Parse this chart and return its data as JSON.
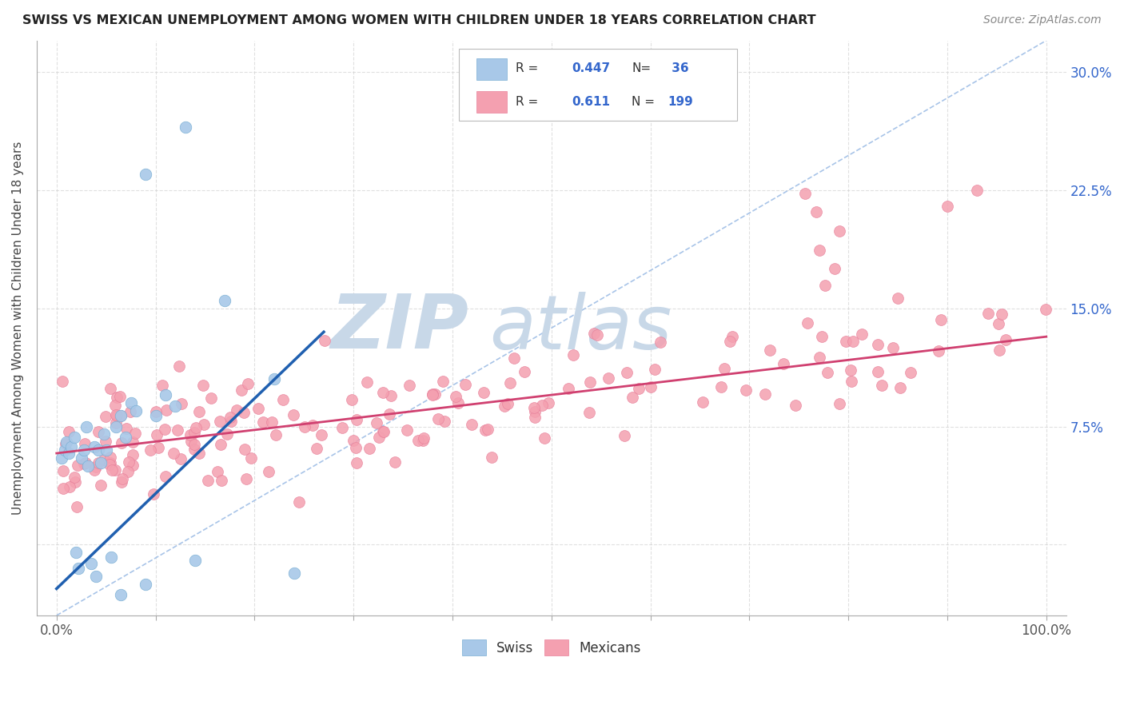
{
  "title": "SWISS VS MEXICAN UNEMPLOYMENT AMONG WOMEN WITH CHILDREN UNDER 18 YEARS CORRELATION CHART",
  "source": "Source: ZipAtlas.com",
  "ylabel": "Unemployment Among Women with Children Under 18 years",
  "xlim": [
    -0.02,
    1.02
  ],
  "ylim": [
    -0.045,
    0.32
  ],
  "xtick_positions": [
    0.0,
    0.1,
    0.2,
    0.3,
    0.4,
    0.5,
    0.6,
    0.7,
    0.8,
    0.9,
    1.0
  ],
  "ytick_positions": [
    0.0,
    0.075,
    0.15,
    0.225,
    0.3
  ],
  "ytick_labels": [
    "",
    "7.5%",
    "15.0%",
    "22.5%",
    "30.0%"
  ],
  "swiss_color": "#a8c8e8",
  "swiss_edge_color": "#7aafd4",
  "mexican_color": "#f4a0b0",
  "mexican_edge_color": "#e8809a",
  "swiss_line_color": "#2060b0",
  "mexican_line_color": "#d04070",
  "diagonal_color": "#a8c4e8",
  "tick_label_color": "#3366cc",
  "swiss_R": 0.447,
  "swiss_N": 36,
  "mexican_R": 0.611,
  "mexican_N": 199,
  "legend_text_color": "#333333",
  "legend_value_color": "#3366cc",
  "watermark_zip_color": "#c8d8e8",
  "watermark_atlas_color": "#c8d8e8",
  "background_color": "#ffffff",
  "grid_color": "#cccccc",
  "swiss_line_x0": 0.0,
  "swiss_line_y0": -0.028,
  "swiss_line_x1": 0.27,
  "swiss_line_y1": 0.135,
  "mexican_line_x0": 0.0,
  "mexican_line_x1": 1.0,
  "mexican_line_y0": 0.058,
  "mexican_line_y1": 0.132,
  "figsize": [
    14.06,
    8.92
  ],
  "dpi": 100
}
